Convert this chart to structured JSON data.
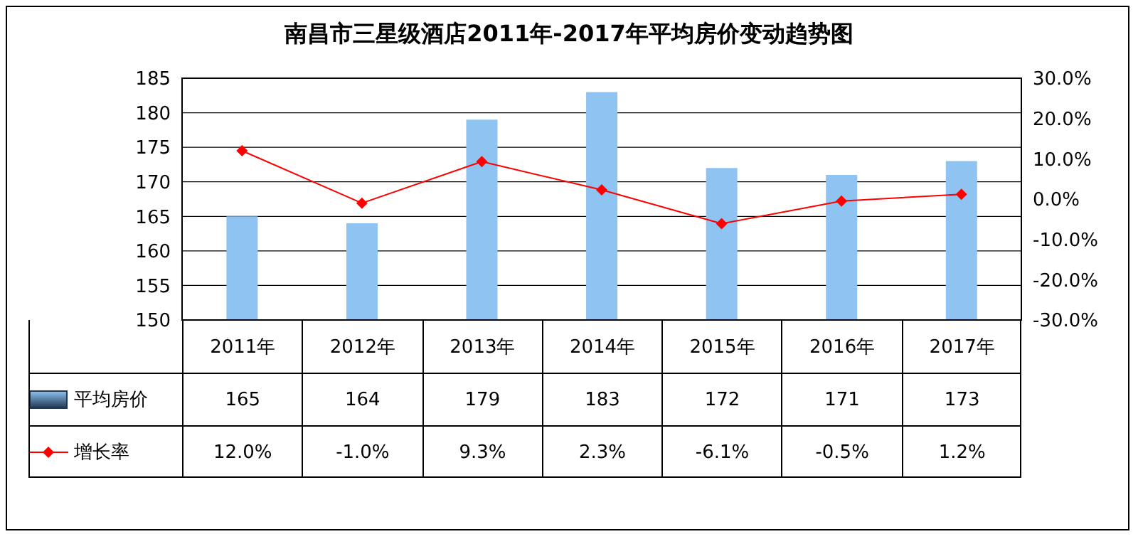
{
  "chart_data": {
    "type": "bar",
    "title": "南昌市三星级酒店2011年-2017年平均房价变动趋势图",
    "categories": [
      "2011年",
      "2012年",
      "2013年",
      "2014年",
      "2015年",
      "2016年",
      "2017年"
    ],
    "series": [
      {
        "name": "平均房价",
        "color": "#8ec3f2",
        "values": [
          165,
          164,
          179,
          183,
          172,
          171,
          173
        ],
        "value_labels": [
          "165",
          "164",
          "179",
          "183",
          "172",
          "171",
          "173"
        ]
      },
      {
        "name": "增长率",
        "type": "line",
        "axis": "y2",
        "color": "#ff0000",
        "values": [
          12.0,
          -1.0,
          9.3,
          2.3,
          -6.1,
          -0.5,
          1.2
        ],
        "value_labels": [
          "12.0%",
          "-1.0%",
          "9.3%",
          "2.3%",
          "-6.1%",
          "-0.5%",
          "1.2%"
        ]
      }
    ],
    "ylim": [
      150,
      185
    ],
    "yticks": [
      150,
      155,
      160,
      165,
      170,
      175,
      180,
      185
    ],
    "y2lim": [
      -30,
      30
    ],
    "y2ticks": [
      {
        "value": -30,
        "label": "-30.0%"
      },
      {
        "value": -20,
        "label": "-20.0%"
      },
      {
        "value": -10,
        "label": "-10.0%"
      },
      {
        "value": 0,
        "label": "0.0%"
      },
      {
        "value": 10,
        "label": "10.0%"
      },
      {
        "value": 20,
        "label": "20.0%"
      },
      {
        "value": 30,
        "label": "30.0%"
      }
    ],
    "grid": "y",
    "legend": "bottom left",
    "marker": "diamond",
    "line_style": "solid"
  }
}
